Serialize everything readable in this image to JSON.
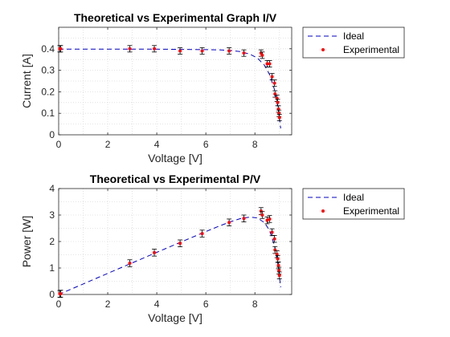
{
  "chart_data": [
    {
      "type": "line",
      "title": "Theoretical vs Experimental Graph I/V",
      "xlabel": "Voltage [V]",
      "ylabel": "Current [A]",
      "xlim": [
        0,
        9.5
      ],
      "ylim": [
        0,
        0.5
      ],
      "xticks": [
        "0",
        "2",
        "4",
        "6",
        "8"
      ],
      "yticks": [
        "0",
        "0.1",
        "0.2",
        "0.3",
        "0.4"
      ],
      "grid": true,
      "legend_position": "outside-top-right",
      "series": [
        {
          "name": "Ideal",
          "style": "dashed",
          "color": "#0000cc",
          "x": [
            0,
            1,
            2,
            3,
            4,
            5,
            6,
            6.5,
            7,
            7.4,
            7.8,
            8.1,
            8.4,
            8.6,
            8.8,
            8.95,
            9.05
          ],
          "y": [
            0.398,
            0.398,
            0.398,
            0.398,
            0.398,
            0.397,
            0.396,
            0.395,
            0.392,
            0.387,
            0.375,
            0.357,
            0.322,
            0.28,
            0.21,
            0.12,
            0.03
          ]
        },
        {
          "name": "Experimental",
          "style": "markers",
          "color": "#ff0000",
          "x": [
            0.05,
            0.08,
            2.9,
            3.9,
            4.95,
            5.85,
            6.95,
            7.55,
            8.25,
            8.3,
            8.5,
            8.6,
            8.7,
            8.8,
            8.82,
            8.9,
            8.93,
            8.96,
            8.98,
            9.0
          ],
          "y": [
            0.4,
            0.4,
            0.4,
            0.4,
            0.39,
            0.39,
            0.39,
            0.38,
            0.38,
            0.37,
            0.33,
            0.33,
            0.27,
            0.24,
            0.19,
            0.17,
            0.15,
            0.12,
            0.1,
            0.08
          ],
          "error": 0.015
        }
      ]
    },
    {
      "type": "line",
      "title": "Theoretical vs Experimental P/V",
      "xlabel": "Voltage [V]",
      "ylabel": "Power [W]",
      "xlim": [
        0,
        9.5
      ],
      "ylim": [
        0,
        4
      ],
      "xticks": [
        "0",
        "2",
        "4",
        "6",
        "8"
      ],
      "yticks": [
        "0",
        "1",
        "2",
        "3",
        "4"
      ],
      "grid": true,
      "legend_position": "outside-top-right",
      "series": [
        {
          "name": "Ideal",
          "style": "dashed",
          "color": "#0000cc",
          "x": [
            0,
            1,
            2,
            3,
            4,
            5,
            6,
            6.5,
            7,
            7.4,
            7.8,
            8.1,
            8.4,
            8.6,
            8.8,
            8.95,
            9.05
          ],
          "y": [
            0,
            0.398,
            0.796,
            1.194,
            1.592,
            1.985,
            2.376,
            2.568,
            2.744,
            2.864,
            2.925,
            2.892,
            2.705,
            2.408,
            1.848,
            1.074,
            0.272
          ]
        },
        {
          "name": "Experimental",
          "style": "markers",
          "color": "#ff0000",
          "x": [
            0.05,
            0.08,
            2.9,
            3.9,
            4.95,
            5.85,
            6.95,
            7.55,
            8.25,
            8.3,
            8.5,
            8.6,
            8.7,
            8.8,
            8.82,
            8.9,
            8.93,
            8.96,
            8.98,
            9.0
          ],
          "y": [
            0.02,
            0.03,
            1.18,
            1.58,
            1.93,
            2.3,
            2.72,
            2.87,
            3.15,
            3.0,
            2.8,
            2.85,
            2.35,
            2.1,
            1.68,
            1.52,
            1.34,
            1.1,
            0.9,
            0.72
          ],
          "error": 0.13
        }
      ]
    }
  ]
}
